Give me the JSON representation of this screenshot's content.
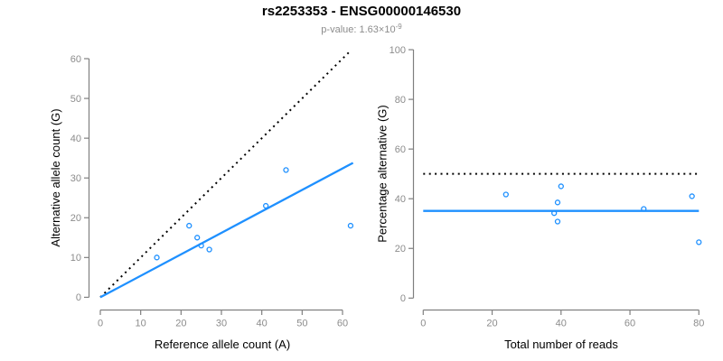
{
  "header": {
    "title": "rs2253353 - ENSG00000146530",
    "pvalue_base": "p-value: 1.63×10",
    "pvalue_exponent": "-9"
  },
  "colors": {
    "accent_blue": "#1E90FF",
    "reference_black": "#000000",
    "axis_line": "#808080",
    "tick_label": "#8c8c8c",
    "axis_title": "#000000",
    "subtitle_gray": "#8c8c8c"
  },
  "chart_data": [
    {
      "type": "scatter",
      "name": "allele-counts",
      "xlabel": "Reference allele count (A)",
      "ylabel": "Alternative allele count (G)",
      "xlim": [
        0,
        62.6
      ],
      "ylim": [
        0,
        62.6
      ],
      "xticks": [
        0,
        10,
        20,
        30,
        40,
        50,
        60
      ],
      "yticks": [
        0,
        10,
        20,
        30,
        40,
        50,
        60
      ],
      "grid": false,
      "legend": null,
      "points": [
        [
          14,
          10
        ],
        [
          22,
          18
        ],
        [
          24,
          15
        ],
        [
          25,
          13
        ],
        [
          27,
          12
        ],
        [
          41,
          23
        ],
        [
          46,
          32
        ],
        [
          62,
          18
        ]
      ],
      "lines": [
        {
          "name": "identity-line",
          "style": "dotted",
          "color": "#000000",
          "from": [
            0,
            0
          ],
          "to": [
            62.1,
            62.1
          ]
        },
        {
          "name": "fit-line",
          "style": "solid",
          "color": "#1E90FF",
          "from": [
            0,
            0
          ],
          "to": [
            62.6,
            33.8
          ]
        }
      ]
    },
    {
      "type": "scatter",
      "name": "percentage-vs-reads",
      "xlabel": "Total number of reads",
      "ylabel": "Percentage alternative (G)",
      "xlim": [
        0,
        80
      ],
      "ylim": [
        0,
        100
      ],
      "xticks": [
        0,
        20,
        40,
        60,
        80
      ],
      "yticks": [
        0,
        20,
        40,
        60,
        80,
        100
      ],
      "grid": false,
      "legend": null,
      "points": [
        [
          24,
          41.7
        ],
        [
          40,
          45.0
        ],
        [
          39,
          38.5
        ],
        [
          38,
          34.2
        ],
        [
          39,
          30.8
        ],
        [
          64,
          35.9
        ],
        [
          78,
          41.0
        ],
        [
          80,
          22.5
        ]
      ],
      "lines": [
        {
          "name": "fifty-percent-line",
          "style": "dotted",
          "color": "#000000",
          "from": [
            0,
            50
          ],
          "to": [
            80,
            50
          ]
        },
        {
          "name": "mean-percentage-line",
          "style": "solid",
          "color": "#1E90FF",
          "from": [
            0,
            35.1
          ],
          "to": [
            80,
            35.1
          ]
        }
      ]
    }
  ]
}
